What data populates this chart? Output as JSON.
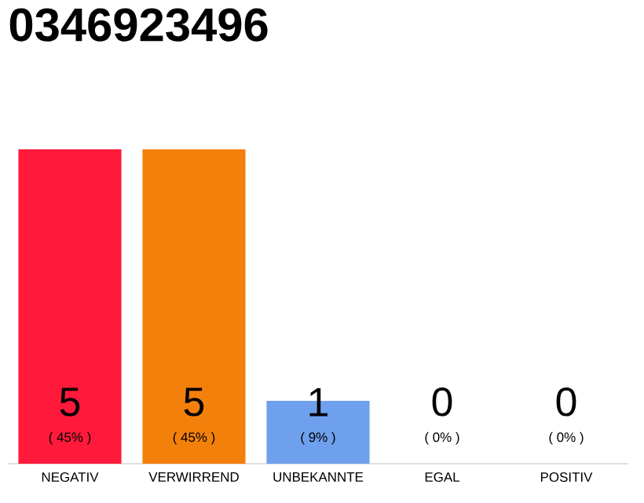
{
  "chart_data": {
    "type": "bar",
    "title": "0346923496",
    "categories": [
      "NEGATIV",
      "VERWIRREND",
      "UNBEKANNTE",
      "EGAL",
      "POSITIV"
    ],
    "values": [
      5,
      5,
      1,
      0,
      0
    ],
    "colors": [
      "#ff1a3c",
      "#f4800c",
      "#6ea0ee",
      "#6ea0ee",
      "#6ea0ee"
    ],
    "data_labels": true,
    "tick_labels": "x",
    "annotations": [
      "( 45% )",
      "( 45% )",
      "( 9% )",
      "( 0% )",
      "( 0% )"
    ]
  }
}
